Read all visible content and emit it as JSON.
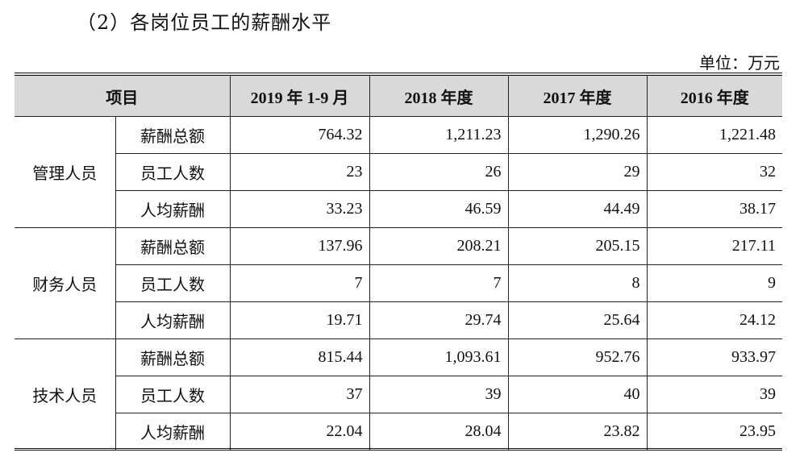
{
  "heading": "（2）各岗位员工的薪酬水平",
  "unit": "单位：万元",
  "columns": [
    "项目",
    "2019 年 1-9 月",
    "2018 年度",
    "2017 年度",
    "2016 年度"
  ],
  "groups": [
    {
      "name": "管理人员",
      "rows": [
        {
          "metric": "薪酬总额",
          "values": [
            "764.32",
            "1,211.23",
            "1,290.26",
            "1,221.48"
          ]
        },
        {
          "metric": "员工人数",
          "values": [
            "23",
            "26",
            "29",
            "32"
          ]
        },
        {
          "metric": "人均薪酬",
          "values": [
            "33.23",
            "46.59",
            "44.49",
            "38.17"
          ]
        }
      ]
    },
    {
      "name": "财务人员",
      "rows": [
        {
          "metric": "薪酬总额",
          "values": [
            "137.96",
            "208.21",
            "205.15",
            "217.11"
          ]
        },
        {
          "metric": "员工人数",
          "values": [
            "7",
            "7",
            "8",
            "9"
          ]
        },
        {
          "metric": "人均薪酬",
          "values": [
            "19.71",
            "29.74",
            "25.64",
            "24.12"
          ]
        }
      ]
    },
    {
      "name": "技术人员",
      "rows": [
        {
          "metric": "薪酬总额",
          "values": [
            "815.44",
            "1,093.61",
            "952.76",
            "933.97"
          ]
        },
        {
          "metric": "员工人数",
          "values": [
            "37",
            "39",
            "40",
            "39"
          ]
        },
        {
          "metric": "人均薪酬",
          "values": [
            "22.04",
            "28.04",
            "23.82",
            "23.95"
          ]
        }
      ]
    }
  ]
}
